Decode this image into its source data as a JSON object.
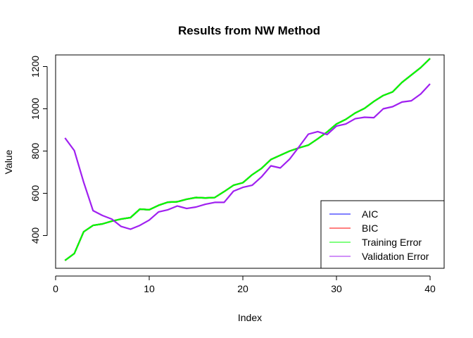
{
  "chart_data": {
    "type": "line",
    "title": "Results from NW Method",
    "xlabel": "Index",
    "ylabel": "Value",
    "xlim": [
      0,
      41.5
    ],
    "ylim": [
      245,
      1255
    ],
    "xticks": [
      0,
      10,
      20,
      30,
      40
    ],
    "yticks": [
      400,
      600,
      800,
      1000,
      1200
    ],
    "grid": false,
    "legend_position": "bottom-right",
    "x": [
      1,
      2,
      3,
      4,
      5,
      6,
      7,
      8,
      9,
      10,
      11,
      12,
      13,
      14,
      15,
      16,
      17,
      18,
      19,
      20,
      21,
      22,
      23,
      24,
      25,
      26,
      27,
      28,
      29,
      30,
      31,
      32,
      33,
      34,
      35,
      36,
      37,
      38,
      39,
      40
    ],
    "series": [
      {
        "name": "AIC",
        "color": "#0000ff",
        "values": [
          282,
          315,
          418,
          448,
          455,
          468,
          478,
          485,
          525,
          522,
          543,
          558,
          560,
          572,
          580,
          578,
          580,
          608,
          638,
          650,
          688,
          718,
          760,
          780,
          800,
          815,
          828,
          858,
          890,
          928,
          950,
          980,
          1002,
          1035,
          1063,
          1080,
          1125,
          1160,
          1195,
          1238
        ]
      },
      {
        "name": "BIC",
        "color": "#ff0000",
        "values": [
          282,
          315,
          418,
          448,
          455,
          468,
          478,
          485,
          525,
          522,
          543,
          558,
          560,
          572,
          580,
          578,
          580,
          608,
          638,
          650,
          688,
          718,
          760,
          780,
          800,
          815,
          828,
          858,
          890,
          928,
          950,
          980,
          1002,
          1035,
          1063,
          1080,
          1125,
          1160,
          1195,
          1238
        ]
      },
      {
        "name": "Training Error",
        "color": "#00ff00",
        "values": [
          282,
          315,
          418,
          448,
          455,
          468,
          478,
          485,
          525,
          522,
          543,
          558,
          560,
          572,
          580,
          578,
          580,
          608,
          638,
          650,
          688,
          718,
          760,
          780,
          800,
          815,
          828,
          858,
          890,
          928,
          950,
          980,
          1002,
          1035,
          1063,
          1080,
          1125,
          1160,
          1195,
          1238
        ]
      },
      {
        "name": "Validation Error",
        "color": "#a020f0",
        "values": [
          862,
          802,
          652,
          518,
          495,
          478,
          443,
          430,
          448,
          473,
          512,
          522,
          540,
          528,
          535,
          548,
          557,
          557,
          610,
          628,
          638,
          678,
          730,
          720,
          762,
          820,
          880,
          892,
          878,
          918,
          928,
          953,
          960,
          958,
          1000,
          1010,
          1032,
          1038,
          1070,
          1118
        ]
      }
    ]
  }
}
